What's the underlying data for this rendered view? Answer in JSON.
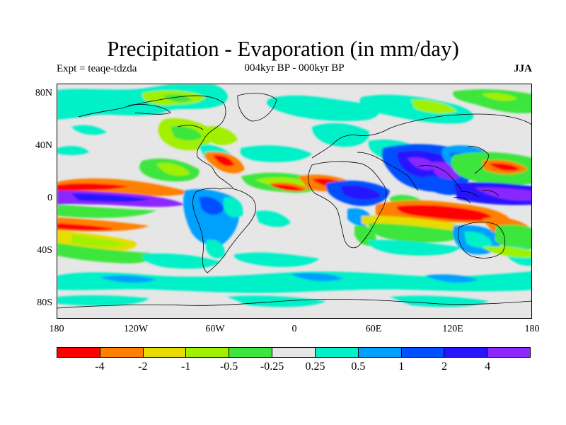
{
  "header": {
    "title": "Precipitation - Evaporation (in mm/day)",
    "subtitle_center": "004kyr BP - 000kyr BP",
    "subtitle_left": "Expt = teaqe-tdzda",
    "subtitle_right": "JJA"
  },
  "axes": {
    "y_ticks": [
      "80N",
      "40N",
      "0",
      "40S",
      "80S"
    ],
    "x_ticks": [
      "180",
      "120W",
      "60W",
      "0",
      "60E",
      "120E",
      "180"
    ]
  },
  "colorbar": {
    "colors": [
      "#ff0000",
      "#ff8000",
      "#e6dc00",
      "#a0f000",
      "#3ce63c",
      "#e6e6e6",
      "#00f0c8",
      "#00a0ff",
      "#0050ff",
      "#2814ff",
      "#8c28ff"
    ],
    "labels": [
      "-4",
      "-2",
      "-1",
      "-0.5",
      "-0.25",
      "0.25",
      "0.5",
      "1",
      "2",
      "4"
    ]
  },
  "map": {
    "background_color": "#e6e6e6",
    "coastline_color": "#000000"
  }
}
